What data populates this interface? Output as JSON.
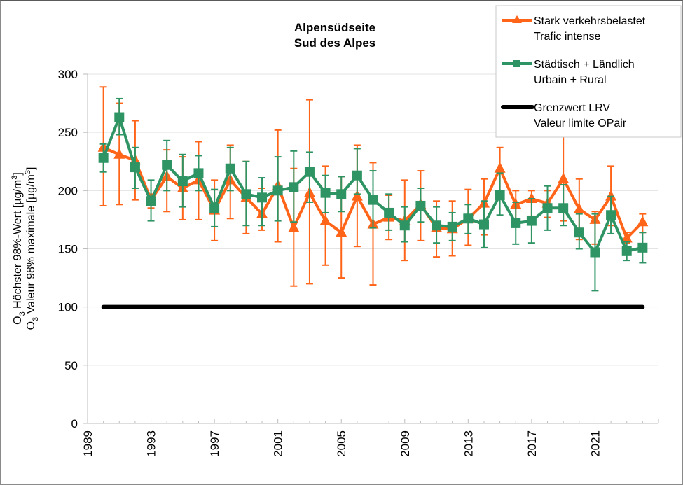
{
  "chart_data": {
    "type": "line",
    "title": [
      "Alpensüdseite",
      "Sud des Alpes"
    ],
    "ylabel": [
      "O₃ Höchster 98%-Wert [µg/m³]",
      "O₃ Valeur 98% maximale [µg/m³]"
    ],
    "ylabel_parts": [
      {
        "prefix": "O",
        "sub": "3",
        "text": " Höchster 98%-Wert [µg/m",
        "sup": "3",
        "suffix": "]"
      },
      {
        "prefix": "O",
        "sub": "3",
        "text": " Valeur 98% maximale [µg/m",
        "sup": "3",
        "suffix": "]"
      }
    ],
    "xlabel": "",
    "ylim": [
      0,
      300
    ],
    "yticks": [
      0,
      50,
      100,
      150,
      200,
      250,
      300
    ],
    "xlim": [
      1989,
      2025
    ],
    "xtick_labels": [
      "1989",
      "1993",
      "1997",
      "2001",
      "2005",
      "2009",
      "2013",
      "2017",
      "2021"
    ],
    "grid": true,
    "legend_position": "top-right",
    "x": [
      1990,
      1991,
      1992,
      1993,
      1994,
      1995,
      1996,
      1997,
      1998,
      1999,
      2000,
      2001,
      2002,
      2003,
      2004,
      2005,
      2006,
      2007,
      2008,
      2009,
      2010,
      2011,
      2012,
      2013,
      2014,
      2015,
      2016,
      2017,
      2018,
      2019,
      2020,
      2021,
      2022,
      2023,
      2024
    ],
    "series": [
      {
        "name": "Stark verkehrsbelastet / Trafic intense",
        "legend": [
          "Stark verkehrsbelastet",
          "Trafic intense"
        ],
        "color": "#ff6418",
        "marker": "triangle",
        "values": [
          237,
          231,
          226,
          192,
          212,
          202,
          209,
          183,
          209,
          194,
          180,
          204,
          168,
          198,
          174,
          164,
          195,
          171,
          177,
          174,
          188,
          168,
          167,
          176,
          189,
          219,
          188,
          193,
          189,
          210,
          184,
          175,
          195,
          159,
          173
        ],
        "err_low": [
          187,
          188,
          192,
          185,
          182,
          175,
          175,
          157,
          176,
          163,
          166,
          156,
          118,
          120,
          136,
          125,
          152,
          119,
          158,
          140,
          157,
          143,
          144,
          153,
          162,
          197,
          175,
          178,
          177,
          174,
          158,
          154,
          170,
          155,
          164
        ],
        "err_high": [
          289,
          275,
          260,
          197,
          235,
          229,
          242,
          209,
          239,
          225,
          202,
          252,
          219,
          278,
          221,
          212,
          239,
          224,
          196,
          209,
          217,
          191,
          191,
          201,
          210,
          237,
          200,
          200,
          200,
          262,
          210,
          182,
          221,
          164,
          180
        ]
      },
      {
        "name": "Städtisch + Ländlich / Urbain + Rural",
        "legend": [
          "Städtisch + Ländlich",
          "Urbain + Rural"
        ],
        "color": "#2e9464",
        "marker": "square",
        "values": [
          228,
          263,
          220,
          191,
          222,
          208,
          215,
          185,
          219,
          197,
          194,
          200,
          203,
          216,
          198,
          197,
          213,
          192,
          181,
          170,
          187,
          170,
          169,
          176,
          171,
          196,
          172,
          174,
          185,
          185,
          164,
          147,
          179,
          148,
          151
        ],
        "err_low": [
          216,
          248,
          202,
          174,
          200,
          186,
          200,
          169,
          200,
          170,
          170,
          174,
          173,
          190,
          181,
          182,
          197,
          168,
          166,
          156,
          173,
          155,
          157,
          163,
          151,
          179,
          154,
          155,
          166,
          170,
          150,
          114,
          163,
          140,
          138
        ],
        "err_high": [
          240,
          279,
          237,
          209,
          243,
          231,
          230,
          201,
          237,
          225,
          211,
          229,
          234,
          233,
          213,
          212,
          236,
          217,
          197,
          186,
          202,
          186,
          181,
          188,
          191,
          215,
          190,
          193,
          204,
          205,
          180,
          180,
          195,
          156,
          164
        ]
      },
      {
        "name": "Grenzwert LRV / Valeur limite OPair",
        "legend": [
          "Grenzwert LRV",
          "Valeur limite OPair"
        ],
        "color": "#000000",
        "marker": "none",
        "x_range": [
          1990,
          2024
        ],
        "value": 100
      }
    ]
  }
}
